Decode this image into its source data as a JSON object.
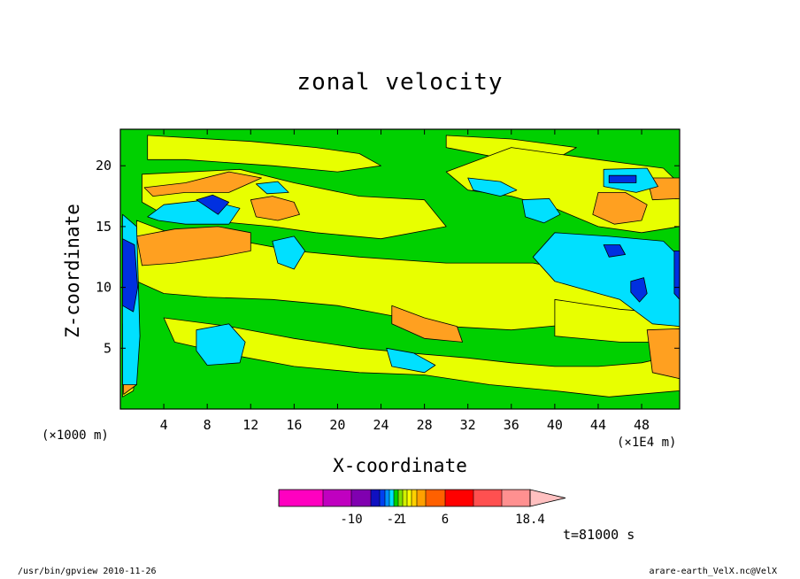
{
  "chart_data": {
    "type": "heatmap",
    "title": "zonal velocity",
    "xlabel": "X-coordinate",
    "ylabel": "Z-coordinate",
    "x_unit_label": "(×1000 m)",
    "x_scale_label": "(×1E4 m)",
    "time_label": "t=81000 s",
    "xlim": [
      0,
      51.5
    ],
    "ylim": [
      0,
      23
    ],
    "x_ticks": [
      "4",
      "8",
      "12",
      "16",
      "20",
      "24",
      "28",
      "32",
      "36",
      "40",
      "44",
      "48"
    ],
    "y_ticks": [
      "5",
      "10",
      "15",
      "20"
    ],
    "colorbar": {
      "colors": [
        "#ff00c0",
        "#c000c0",
        "#8000b0",
        "#1010c0",
        "#0040f0",
        "#0090ff",
        "#00e0ff",
        "#00d000",
        "#80e000",
        "#d0f000",
        "#ffff00",
        "#ffd000",
        "#ffa000",
        "#ff6000",
        "#ff0000",
        "#ff5050",
        "#ff9090",
        "#ffc0c0"
      ],
      "tick_labels": [
        "-10",
        "-2",
        "1",
        "6",
        "18.4"
      ]
    },
    "series": [
      {
        "name": "background",
        "color": "#00d000"
      },
      {
        "name": "yellow",
        "color": "#e8ff00"
      },
      {
        "name": "orange",
        "color": "#ffa020"
      },
      {
        "name": "cyan",
        "color": "#00e0ff"
      },
      {
        "name": "blue",
        "color": "#0030e0"
      }
    ],
    "regions": [
      {
        "level": "yellow",
        "pts": [
          [
            2.5,
            22.5
          ],
          [
            12,
            22
          ],
          [
            18,
            21.5
          ],
          [
            22,
            21
          ],
          [
            24,
            20
          ],
          [
            20,
            19.5
          ],
          [
            14,
            20
          ],
          [
            6,
            20.5
          ],
          [
            2.5,
            20.5
          ]
        ]
      },
      {
        "level": "yellow",
        "pts": [
          [
            30,
            22.5
          ],
          [
            36,
            22.2
          ],
          [
            42,
            21.5
          ],
          [
            40,
            20.5
          ],
          [
            34,
            20.8
          ],
          [
            30,
            21.5
          ]
        ]
      },
      {
        "level": "yellow",
        "pts": [
          [
            2,
            19.3
          ],
          [
            11,
            19.7
          ],
          [
            16,
            18.6
          ],
          [
            22,
            17.5
          ],
          [
            28,
            17.2
          ],
          [
            30,
            15
          ],
          [
            24,
            14
          ],
          [
            18,
            14.5
          ],
          [
            14,
            15
          ],
          [
            8,
            15.5
          ],
          [
            4,
            16
          ],
          [
            2,
            17
          ]
        ]
      },
      {
        "level": "yellow",
        "pts": [
          [
            1.5,
            15.5
          ],
          [
            4.5,
            14.5
          ],
          [
            10,
            14
          ],
          [
            16,
            13
          ],
          [
            22,
            12.5
          ],
          [
            30,
            12
          ],
          [
            38,
            12
          ],
          [
            44,
            11
          ],
          [
            48,
            10
          ],
          [
            47,
            7.5
          ],
          [
            42,
            7
          ],
          [
            36,
            6.5
          ],
          [
            30,
            6.8
          ],
          [
            26,
            7.5
          ],
          [
            20,
            8.5
          ],
          [
            14,
            9
          ],
          [
            8,
            9.2
          ],
          [
            4,
            9.5
          ],
          [
            1.5,
            10.5
          ]
        ]
      },
      {
        "level": "yellow",
        "pts": [
          [
            36,
            21.5
          ],
          [
            44,
            20.5
          ],
          [
            50,
            19.8
          ],
          [
            51.5,
            18.5
          ],
          [
            51.5,
            15
          ],
          [
            48,
            14.5
          ],
          [
            44,
            15
          ],
          [
            40,
            16.5
          ],
          [
            36,
            17.5
          ],
          [
            32,
            18
          ],
          [
            30,
            19.5
          ]
        ]
      },
      {
        "level": "yellow",
        "pts": [
          [
            4,
            7.5
          ],
          [
            10,
            6.8
          ],
          [
            16,
            5.8
          ],
          [
            22,
            5
          ],
          [
            28,
            4.5
          ],
          [
            32,
            4.2
          ],
          [
            36,
            3.8
          ],
          [
            40,
            3.5
          ],
          [
            44,
            3.5
          ],
          [
            48,
            3.8
          ],
          [
            51.5,
            4.5
          ],
          [
            51.5,
            1.5
          ],
          [
            45,
            1
          ],
          [
            40,
            1.5
          ],
          [
            34,
            2
          ],
          [
            28,
            2.8
          ],
          [
            22,
            3
          ],
          [
            16,
            3.5
          ],
          [
            10,
            4.5
          ],
          [
            5,
            5.5
          ]
        ]
      },
      {
        "level": "yellow",
        "pts": [
          [
            0.2,
            7
          ],
          [
            1,
            6
          ],
          [
            1.5,
            4
          ],
          [
            1.2,
            1.5
          ],
          [
            0.2,
            1
          ]
        ]
      },
      {
        "level": "yellow",
        "pts": [
          [
            40,
            9
          ],
          [
            46,
            8.2
          ],
          [
            51.5,
            7.8
          ],
          [
            51.5,
            5.5
          ],
          [
            46,
            5.5
          ],
          [
            40,
            6
          ]
        ]
      },
      {
        "level": "orange",
        "pts": [
          [
            2.2,
            18.2
          ],
          [
            6,
            18.6
          ],
          [
            10,
            19.5
          ],
          [
            13,
            19
          ],
          [
            10,
            17.8
          ],
          [
            6,
            17.8
          ],
          [
            3,
            17.5
          ]
        ]
      },
      {
        "level": "orange",
        "pts": [
          [
            12,
            17.2
          ],
          [
            14,
            17.5
          ],
          [
            16,
            17
          ],
          [
            16.5,
            16
          ],
          [
            14.5,
            15.5
          ],
          [
            12.5,
            15.8
          ]
        ]
      },
      {
        "level": "orange",
        "pts": [
          [
            1.5,
            14.2
          ],
          [
            5,
            14.8
          ],
          [
            9,
            15
          ],
          [
            12,
            14.5
          ],
          [
            12,
            13
          ],
          [
            9,
            12.5
          ],
          [
            5,
            12
          ],
          [
            2,
            11.8
          ]
        ]
      },
      {
        "level": "orange",
        "pts": [
          [
            25,
            8.5
          ],
          [
            28,
            7.5
          ],
          [
            31,
            6.8
          ],
          [
            31.5,
            5.5
          ],
          [
            28,
            5.8
          ],
          [
            25,
            7
          ]
        ]
      },
      {
        "level": "orange",
        "pts": [
          [
            44,
            17.8
          ],
          [
            46.5,
            17.8
          ],
          [
            48.5,
            16.8
          ],
          [
            48,
            15.5
          ],
          [
            45.5,
            15.2
          ],
          [
            43.5,
            16
          ]
        ]
      },
      {
        "level": "orange",
        "pts": [
          [
            48.5,
            19
          ],
          [
            51.5,
            19
          ],
          [
            51.5,
            17.3
          ],
          [
            49,
            17.2
          ]
        ]
      },
      {
        "level": "orange",
        "pts": [
          [
            48.5,
            6.5
          ],
          [
            51.5,
            6.6
          ],
          [
            51.5,
            2.5
          ],
          [
            49,
            3
          ]
        ]
      },
      {
        "level": "orange",
        "pts": [
          [
            0.2,
            5.5
          ],
          [
            1.2,
            5
          ],
          [
            1.5,
            2
          ],
          [
            0.3,
            1.2
          ]
        ]
      },
      {
        "level": "cyan",
        "pts": [
          [
            2.5,
            15.8
          ],
          [
            4,
            16.8
          ],
          [
            8,
            17.2
          ],
          [
            11,
            16.5
          ],
          [
            10,
            15.2
          ],
          [
            6,
            15.2
          ],
          [
            3.5,
            15.5
          ]
        ]
      },
      {
        "level": "cyan",
        "pts": [
          [
            12.5,
            18.5
          ],
          [
            14.5,
            18.7
          ],
          [
            15.5,
            17.8
          ],
          [
            13.5,
            17.7
          ]
        ]
      },
      {
        "level": "cyan",
        "pts": [
          [
            14,
            13.8
          ],
          [
            16,
            14.2
          ],
          [
            17,
            13
          ],
          [
            16,
            11.5
          ],
          [
            14.5,
            12
          ]
        ]
      },
      {
        "level": "cyan",
        "pts": [
          [
            7,
            6.5
          ],
          [
            10,
            7
          ],
          [
            11.5,
            5.5
          ],
          [
            11,
            3.8
          ],
          [
            8,
            3.6
          ],
          [
            7,
            4.8
          ]
        ]
      },
      {
        "level": "cyan",
        "pts": [
          [
            24.5,
            5
          ],
          [
            27,
            4.6
          ],
          [
            29,
            3.6
          ],
          [
            28,
            3
          ],
          [
            25,
            3.5
          ]
        ]
      },
      {
        "level": "cyan",
        "pts": [
          [
            32,
            19
          ],
          [
            35,
            18.7
          ],
          [
            36.5,
            18
          ],
          [
            35,
            17.5
          ],
          [
            32.5,
            18
          ]
        ]
      },
      {
        "level": "cyan",
        "pts": [
          [
            37,
            17.2
          ],
          [
            39.5,
            17.3
          ],
          [
            40.5,
            16
          ],
          [
            39,
            15.3
          ],
          [
            37.3,
            15.8
          ]
        ]
      },
      {
        "level": "cyan",
        "pts": [
          [
            44.5,
            19.7
          ],
          [
            48.5,
            19.8
          ],
          [
            49.5,
            18.3
          ],
          [
            47.5,
            17.8
          ],
          [
            44.5,
            18.3
          ]
        ]
      },
      {
        "level": "cyan",
        "pts": [
          [
            40,
            14.5
          ],
          [
            45,
            14.2
          ],
          [
            50,
            13.8
          ],
          [
            51.5,
            12.5
          ],
          [
            51.5,
            6.8
          ],
          [
            49,
            7
          ],
          [
            46,
            9
          ],
          [
            44,
            9.5
          ],
          [
            40,
            10.5
          ],
          [
            38,
            12.5
          ]
        ]
      },
      {
        "level": "cyan",
        "pts": [
          [
            0.2,
            16
          ],
          [
            1.5,
            15
          ],
          [
            1.8,
            6
          ],
          [
            1.5,
            2
          ],
          [
            0.2,
            2
          ]
        ]
      },
      {
        "level": "blue",
        "pts": [
          [
            7,
            17.2
          ],
          [
            8.5,
            17.6
          ],
          [
            10,
            17
          ],
          [
            9,
            16
          ]
        ]
      },
      {
        "level": "blue",
        "pts": [
          [
            44.5,
            13.5
          ],
          [
            46,
            13.5
          ],
          [
            46.5,
            12.7
          ],
          [
            45,
            12.5
          ]
        ]
      },
      {
        "level": "blue",
        "pts": [
          [
            45,
            19.2
          ],
          [
            47.5,
            19.2
          ],
          [
            47.5,
            18.6
          ],
          [
            45,
            18.6
          ]
        ]
      },
      {
        "level": "blue",
        "pts": [
          [
            47,
            10.5
          ],
          [
            48.2,
            10.8
          ],
          [
            48.5,
            9.5
          ],
          [
            47.8,
            8.8
          ],
          [
            47,
            9.6
          ]
        ]
      },
      {
        "level": "blue",
        "pts": [
          [
            0.2,
            14
          ],
          [
            1.3,
            13.5
          ],
          [
            1.6,
            10
          ],
          [
            1.2,
            8
          ],
          [
            0.2,
            8.5
          ]
        ]
      },
      {
        "level": "blue",
        "pts": [
          [
            51,
            13
          ],
          [
            51.5,
            13
          ],
          [
            51.5,
            9
          ],
          [
            51,
            9.5
          ]
        ]
      }
    ]
  }
}
